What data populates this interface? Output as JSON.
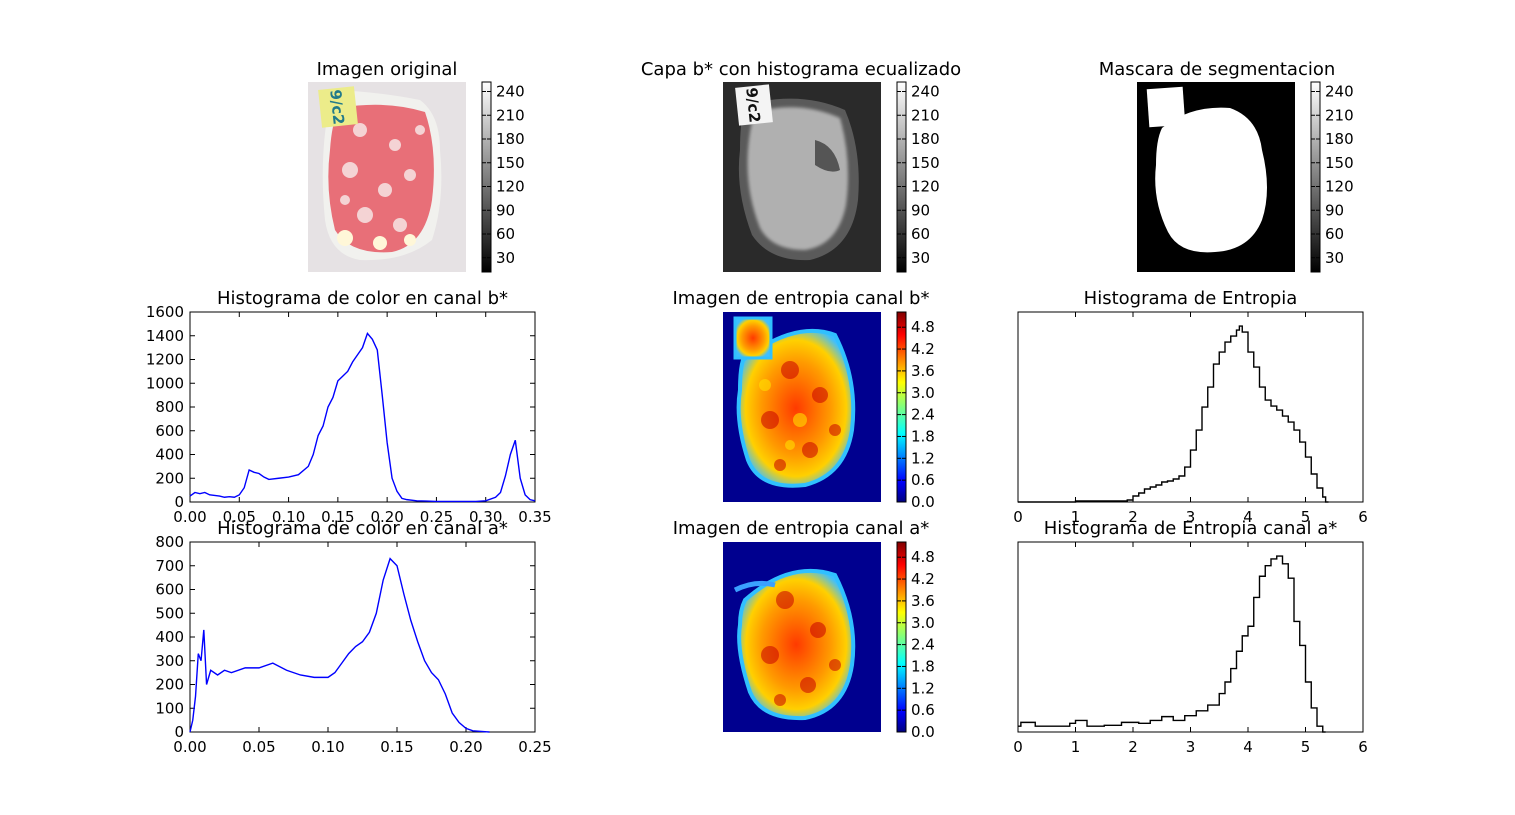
{
  "panels": {
    "original_title": "Imagen original",
    "blayer_title": "Capa b* con histograma ecualizado",
    "mask_title": "Mascara de segmentacion",
    "entropy_b_title": "Imagen de entropia canal b*",
    "entropy_a_title": "Imagen de entropia canal a*",
    "sticker_text": "9/c2"
  },
  "colorbars": {
    "gray_ticks": [
      "240",
      "210",
      "180",
      "150",
      "120",
      "90",
      "60",
      "30"
    ],
    "jet_ticks": [
      "4.8",
      "4.2",
      "3.6",
      "3.0",
      "2.4",
      "1.8",
      "1.2",
      "0.6",
      "0.0"
    ]
  },
  "colors": {
    "line_blue": "#0000ff",
    "step_black": "#000000"
  },
  "chart_data": [
    {
      "type": "line",
      "title": "Histograma de color en canal b*",
      "xlim": [
        0,
        0.35
      ],
      "ylim": [
        0,
        1600
      ],
      "xticks": [
        "0.00",
        "0.05",
        "0.10",
        "0.15",
        "0.20",
        "0.25",
        "0.30",
        "0.35"
      ],
      "yticks": [
        "0",
        "200",
        "400",
        "600",
        "800",
        "1000",
        "1200",
        "1400",
        "1600"
      ],
      "x": [
        0,
        0.005,
        0.01,
        0.015,
        0.02,
        0.025,
        0.03,
        0.035,
        0.04,
        0.045,
        0.05,
        0.055,
        0.06,
        0.065,
        0.07,
        0.075,
        0.08,
        0.09,
        0.1,
        0.11,
        0.12,
        0.125,
        0.13,
        0.135,
        0.14,
        0.145,
        0.15,
        0.155,
        0.16,
        0.165,
        0.17,
        0.175,
        0.18,
        0.185,
        0.19,
        0.195,
        0.2,
        0.205,
        0.21,
        0.215,
        0.22,
        0.23,
        0.24,
        0.25,
        0.26,
        0.27,
        0.28,
        0.29,
        0.3,
        0.31,
        0.315,
        0.32,
        0.325,
        0.33,
        0.335,
        0.34,
        0.345,
        0.35
      ],
      "y": [
        50,
        80,
        70,
        80,
        60,
        55,
        50,
        40,
        45,
        40,
        60,
        120,
        270,
        250,
        240,
        210,
        190,
        200,
        210,
        230,
        300,
        400,
        560,
        640,
        800,
        880,
        1020,
        1060,
        1100,
        1180,
        1240,
        1300,
        1420,
        1370,
        1280,
        900,
        500,
        200,
        90,
        30,
        20,
        10,
        8,
        5,
        5,
        5,
        5,
        5,
        10,
        40,
        80,
        220,
        400,
        520,
        200,
        60,
        20,
        10
      ]
    },
    {
      "type": "line",
      "title": "Histograma de color en canal a*",
      "xlim": [
        0,
        0.25
      ],
      "ylim": [
        0,
        800
      ],
      "xticks": [
        "0.00",
        "0.05",
        "0.10",
        "0.15",
        "0.20",
        "0.25"
      ],
      "yticks": [
        "0",
        "100",
        "200",
        "300",
        "400",
        "500",
        "600",
        "700",
        "800"
      ],
      "x": [
        0,
        0.002,
        0.004,
        0.006,
        0.008,
        0.01,
        0.012,
        0.015,
        0.02,
        0.025,
        0.03,
        0.04,
        0.05,
        0.06,
        0.07,
        0.08,
        0.09,
        0.1,
        0.105,
        0.11,
        0.115,
        0.12,
        0.125,
        0.13,
        0.135,
        0.14,
        0.145,
        0.15,
        0.155,
        0.16,
        0.165,
        0.17,
        0.175,
        0.18,
        0.185,
        0.19,
        0.195,
        0.2,
        0.205,
        0.21,
        0.215,
        0.217
      ],
      "y": [
        0,
        50,
        150,
        330,
        300,
        430,
        200,
        260,
        240,
        260,
        250,
        270,
        270,
        290,
        260,
        240,
        230,
        230,
        250,
        290,
        330,
        360,
        380,
        420,
        500,
        640,
        730,
        700,
        580,
        470,
        380,
        300,
        250,
        220,
        160,
        80,
        40,
        15,
        5,
        3,
        1,
        0
      ]
    },
    {
      "type": "step",
      "title": "Histograma de Entropia",
      "xlim": [
        0,
        6
      ],
      "xticks": [
        "0",
        "1",
        "2",
        "3",
        "4",
        "5",
        "6"
      ],
      "x": [
        0,
        0.5,
        1,
        1.5,
        1.9,
        2.0,
        2.1,
        2.2,
        2.3,
        2.4,
        2.5,
        2.6,
        2.7,
        2.8,
        2.9,
        3.0,
        3.1,
        3.2,
        3.3,
        3.4,
        3.5,
        3.6,
        3.7,
        3.8,
        3.85,
        3.9,
        4.0,
        4.1,
        4.2,
        4.3,
        4.4,
        4.5,
        4.6,
        4.7,
        4.8,
        4.9,
        5.0,
        5.1,
        5.2,
        5.3,
        5.35
      ],
      "y": [
        0,
        0,
        1,
        1,
        2,
        6,
        9,
        13,
        15,
        17,
        20,
        21,
        23,
        26,
        35,
        52,
        72,
        95,
        115,
        138,
        150,
        160,
        166,
        172,
        176,
        170,
        150,
        135,
        115,
        102,
        96,
        92,
        86,
        80,
        72,
        60,
        45,
        28,
        14,
        5,
        0
      ]
    },
    {
      "type": "step",
      "title": "Histograma de Entropia canal a*",
      "xlim": [
        0,
        6
      ],
      "xticks": [
        "0",
        "1",
        "2",
        "3",
        "4",
        "5",
        "6"
      ],
      "x": [
        0,
        0.05,
        0.3,
        0.6,
        0.9,
        1.0,
        1.2,
        1.5,
        1.8,
        2.1,
        2.3,
        2.5,
        2.7,
        2.9,
        3.1,
        3.3,
        3.5,
        3.6,
        3.7,
        3.8,
        3.9,
        4.0,
        4.1,
        4.2,
        4.3,
        4.4,
        4.5,
        4.6,
        4.7,
        4.8,
        4.9,
        5.0,
        5.1,
        5.2,
        5.3
      ],
      "y": [
        6,
        10,
        6,
        6,
        9,
        12,
        6,
        7,
        10,
        9,
        12,
        16,
        12,
        17,
        22,
        28,
        40,
        52,
        66,
        84,
        100,
        110,
        140,
        162,
        173,
        180,
        183,
        175,
        160,
        115,
        90,
        52,
        25,
        6,
        0
      ]
    }
  ]
}
